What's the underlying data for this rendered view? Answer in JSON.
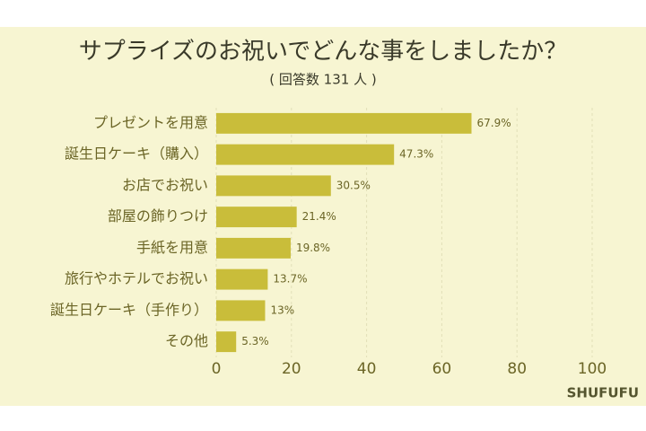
{
  "chart_data": {
    "type": "barh",
    "title": "サプライズのお祝いでどんな事をしましたか？",
    "subtitle": "( 回答数 131 人 )",
    "categories": [
      "プレゼントを用意",
      "誕生日ケーキ（購入）",
      "お店でお祝い",
      "部屋の飾りつけ",
      "手紙を用意",
      "旅行やホテルでお祝い",
      "誕生日ケーキ（手作り）",
      "その他"
    ],
    "values": [
      67.9,
      47.3,
      30.5,
      21.4,
      19.8,
      13.7,
      13,
      5.3
    ],
    "value_labels": [
      "67.9%",
      "47.3%",
      "30.5%",
      "21.4%",
      "19.8%",
      "13.7%",
      "13%",
      "5.3%"
    ],
    "color": "#c9bd3a",
    "xlim": [
      0,
      100
    ],
    "xticks": [
      0,
      20,
      40,
      60,
      80,
      100
    ],
    "grid": true,
    "watermark": "SHUFUFU"
  }
}
